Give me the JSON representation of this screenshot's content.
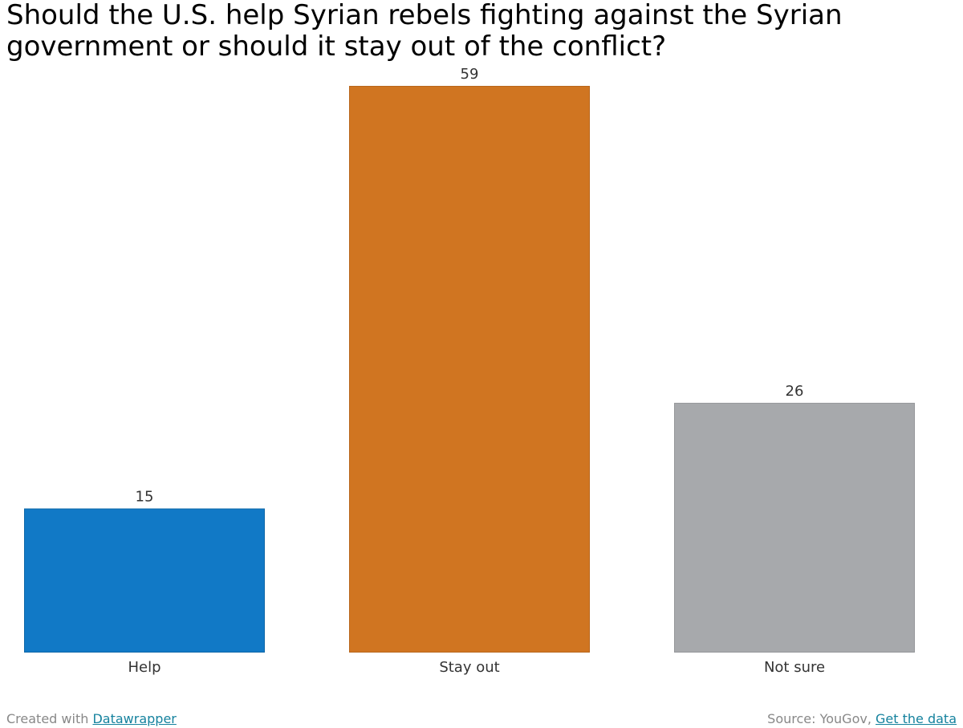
{
  "title": "Should the U.S. help Syrian rebels fighting against the Syrian government or should it stay out of the conflict?",
  "footer": {
    "created_prefix": "Created with",
    "created_link": "Datawrapper",
    "source_prefix": "Source: YouGov,",
    "data_link": "Get the data"
  },
  "chart_data": {
    "type": "bar",
    "categories": [
      "Help",
      "Stay out",
      "Not sure"
    ],
    "values": [
      15,
      59,
      26
    ],
    "data_labels": [
      "15",
      "59",
      "26"
    ],
    "ylim": [
      0,
      59
    ],
    "grid": false,
    "bar_colors": [
      "#1179c6",
      "#d07521",
      "#a7a9ac"
    ],
    "bar_stroke_colors": [
      "#0e67a8",
      "#b8661c",
      "#95979a"
    ]
  }
}
